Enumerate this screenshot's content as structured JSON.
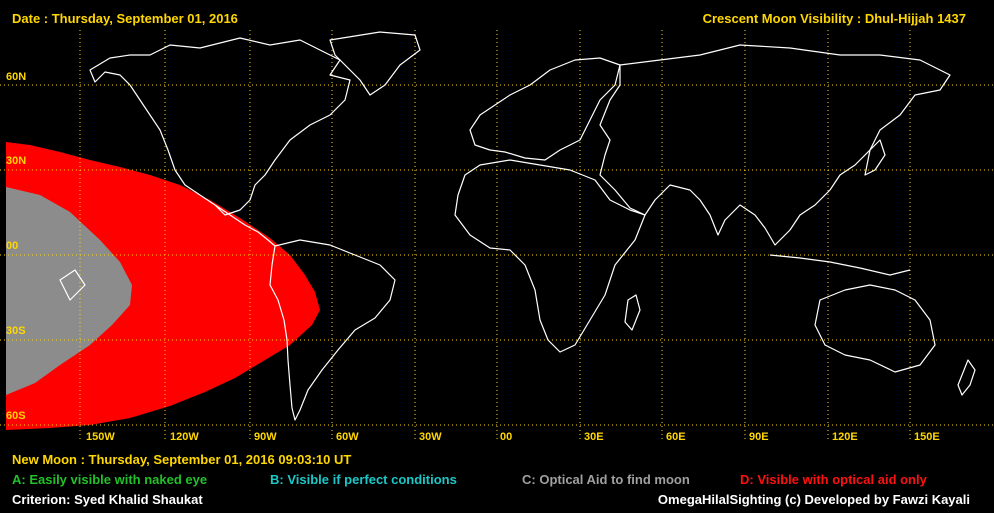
{
  "header": {
    "date": "Date : Thursday, September 01, 2016",
    "title": "Crescent Moon Visibility : Dhul-Hijjah  1437"
  },
  "map": {
    "lat_labels": [
      "60N",
      "30N",
      "00",
      "30S",
      "60S"
    ],
    "lon_labels": [
      "150W",
      "120W",
      "90W",
      "60W",
      "30W",
      "00",
      "30E",
      "60E",
      "90E",
      "120E",
      "150E"
    ],
    "colors": {
      "zone_a": "#22c02a",
      "zone_b": "#1bc8c8",
      "zone_c": "#8c8c8c",
      "zone_d": "#ff0000",
      "coastline": "#ffffff",
      "grid": "#ffd700"
    }
  },
  "footer": {
    "new_moon": "New Moon : Thursday, September 01, 2016  09:03:10  UT",
    "legend_a": "A: Easily visible with naked eye",
    "legend_b": "B: Visible if perfect conditions",
    "legend_c": "C: Optical Aid to find moon",
    "legend_d": "D: Visible with optical aid only",
    "criterion": "Criterion: Syed Khalid Shaukat",
    "credit": "OmegaHilalSighting  (c)  Developed by Fawzi Kayali"
  }
}
